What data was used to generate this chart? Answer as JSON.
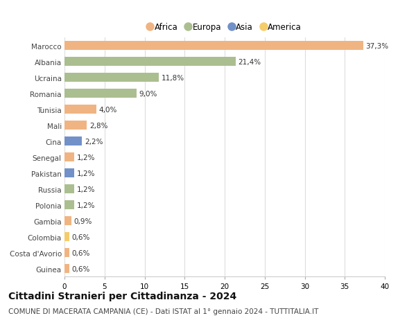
{
  "countries": [
    "Marocco",
    "Albania",
    "Ucraina",
    "Romania",
    "Tunisia",
    "Mali",
    "Cina",
    "Senegal",
    "Pakistan",
    "Russia",
    "Polonia",
    "Gambia",
    "Colombia",
    "Costa d'Avorio",
    "Guinea"
  ],
  "values": [
    37.3,
    21.4,
    11.8,
    9.0,
    4.0,
    2.8,
    2.2,
    1.2,
    1.2,
    1.2,
    1.2,
    0.9,
    0.6,
    0.6,
    0.6
  ],
  "labels": [
    "37,3%",
    "21,4%",
    "11,8%",
    "9,0%",
    "4,0%",
    "2,8%",
    "2,2%",
    "1,2%",
    "1,2%",
    "1,2%",
    "1,2%",
    "0,9%",
    "0,6%",
    "0,6%",
    "0,6%"
  ],
  "continents": [
    "Africa",
    "Europa",
    "Europa",
    "Europa",
    "Africa",
    "Africa",
    "Asia",
    "Africa",
    "Asia",
    "Europa",
    "Europa",
    "Africa",
    "America",
    "Africa",
    "Africa"
  ],
  "colors": {
    "Africa": "#F0B482",
    "Europa": "#ABBE90",
    "Asia": "#7191C8",
    "America": "#F5CC6A"
  },
  "legend_order": [
    "Africa",
    "Europa",
    "Asia",
    "America"
  ],
  "xlim": [
    0,
    40
  ],
  "xticks": [
    0,
    5,
    10,
    15,
    20,
    25,
    30,
    35,
    40
  ],
  "title": "Cittadini Stranieri per Cittadinanza - 2024",
  "subtitle": "COMUNE DI MACERATA CAMPANIA (CE) - Dati ISTAT al 1° gennaio 2024 - TUTTITALIA.IT",
  "background_color": "#ffffff",
  "bar_height": 0.55,
  "grid_color": "#dddddd",
  "label_fontsize": 7.5,
  "ytick_fontsize": 7.5,
  "xtick_fontsize": 7.5,
  "title_fontsize": 10,
  "subtitle_fontsize": 7.5,
  "legend_fontsize": 8.5
}
